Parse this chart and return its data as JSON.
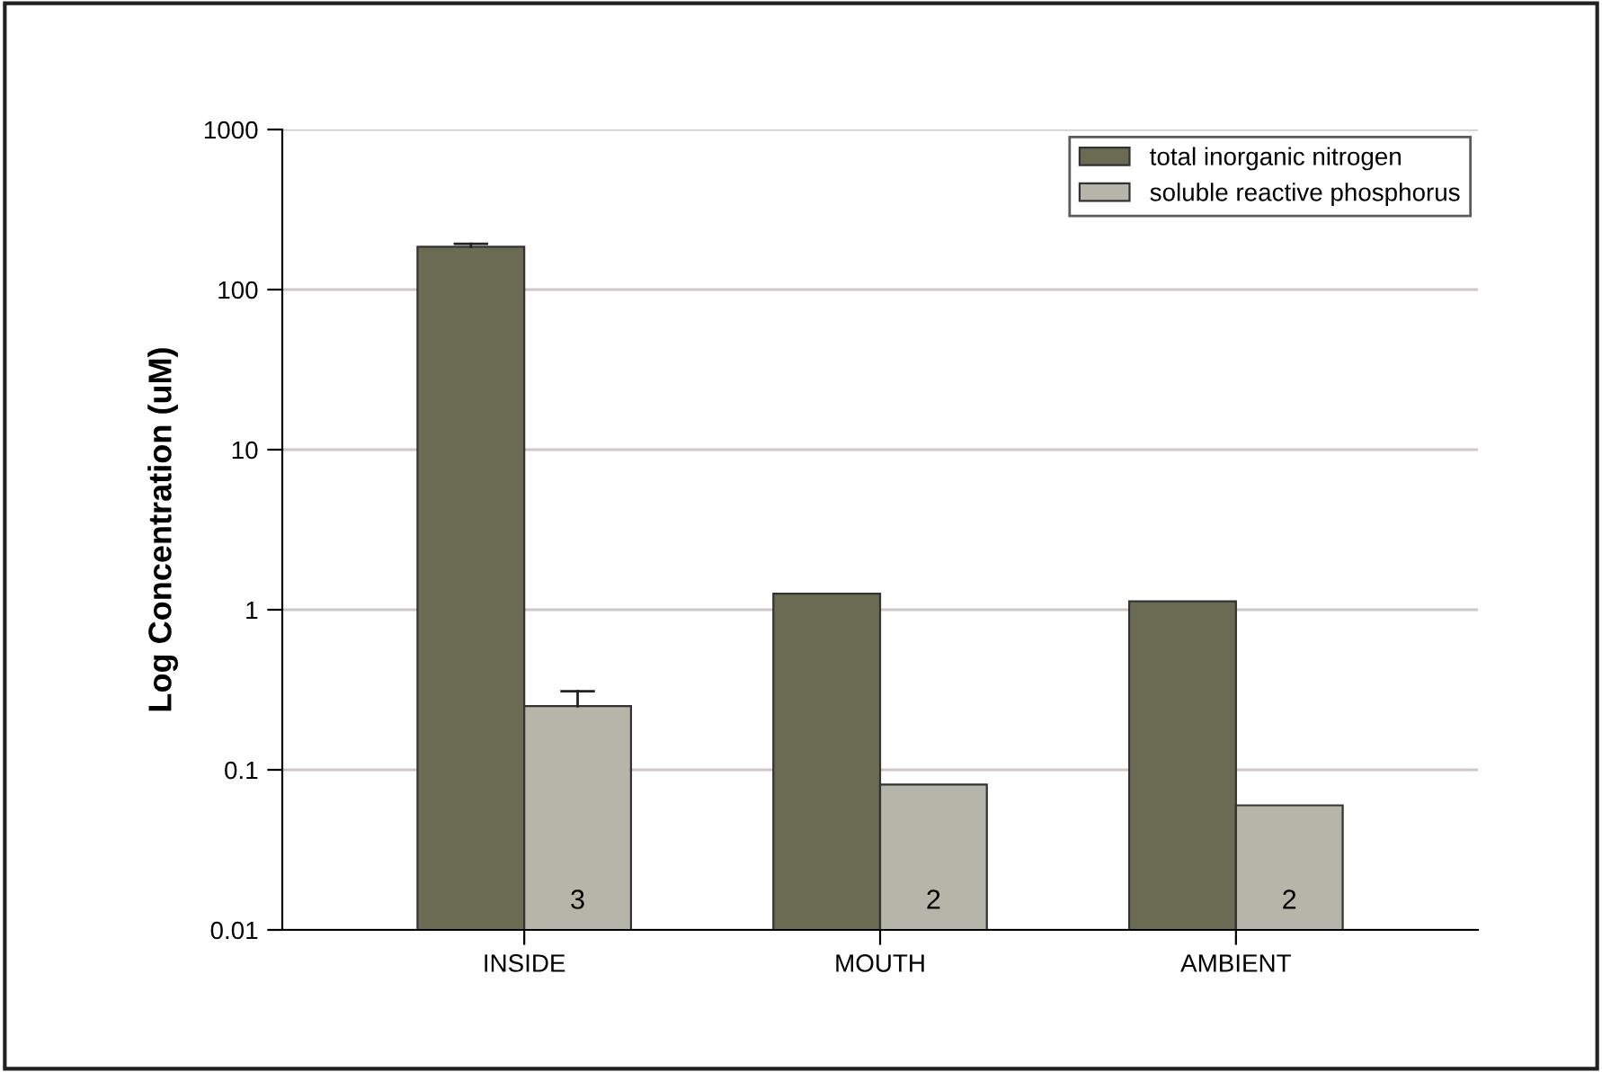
{
  "chart_data": {
    "type": "bar",
    "ylabel": "Log Concentration (uM)",
    "categories": [
      "INSIDE",
      "MOUTH",
      "AMBIENT"
    ],
    "series": [
      {
        "name": "total inorganic nitrogen",
        "color": "#6b6b53",
        "values": [
          185,
          1.26,
          1.13
        ],
        "errors": [
          [
            185,
            193
          ],
          null,
          null
        ]
      },
      {
        "name": "soluble reactive phosphorus",
        "color": "#b5b6a9",
        "values": [
          0.25,
          0.081,
          0.06
        ],
        "errors": [
          [
            0.25,
            0.31
          ],
          null,
          null
        ]
      }
    ],
    "log": "y",
    "ylim": [
      0.01,
      1000
    ],
    "yticks": [
      0.01,
      0.1,
      1,
      10,
      100,
      1000
    ],
    "grid": "y",
    "legend": "top right",
    "annotations": [
      {
        "text": "3",
        "x": "INSIDE",
        "y": 0.015
      },
      {
        "text": "2",
        "x": "MOUTH",
        "y": 0.015
      },
      {
        "text": "2",
        "x": "AMBIENT",
        "y": 0.015
      }
    ]
  }
}
